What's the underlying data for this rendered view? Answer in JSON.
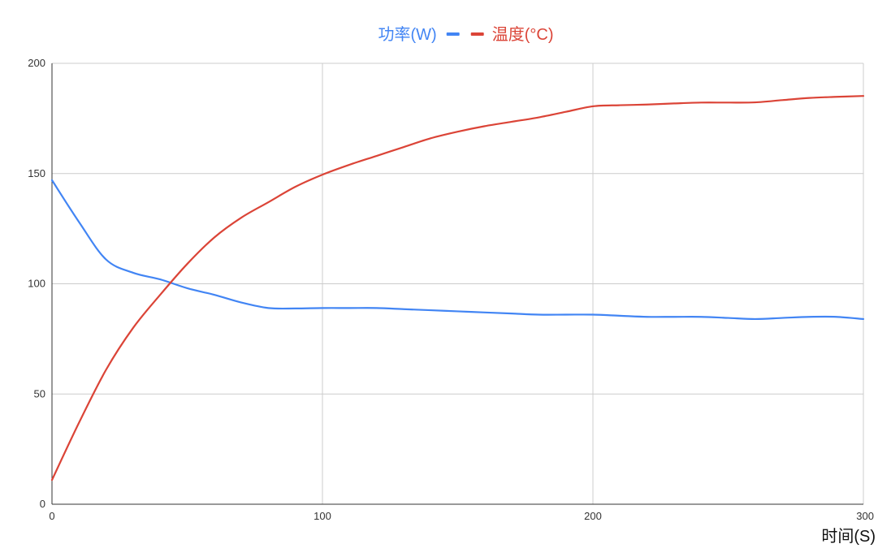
{
  "chart_data": {
    "type": "line",
    "title": "",
    "xlabel": "时间(S)",
    "ylabel": "",
    "xlim": [
      0,
      300
    ],
    "ylim": [
      0,
      200
    ],
    "x_ticks": [
      0,
      100,
      200,
      300
    ],
    "y_ticks": [
      0,
      50,
      100,
      150,
      200
    ],
    "grid": true,
    "legend_position": "top-center",
    "series": [
      {
        "name": "功率(W)",
        "color": "#4285f4",
        "x": [
          0,
          10,
          20,
          30,
          40,
          50,
          60,
          70,
          80,
          90,
          100,
          110,
          120,
          130,
          140,
          150,
          160,
          170,
          180,
          190,
          200,
          210,
          220,
          230,
          240,
          250,
          260,
          270,
          280,
          290,
          300
        ],
        "y": [
          147,
          128,
          111,
          105,
          102,
          98,
          95,
          91.5,
          89,
          88.8,
          89,
          89,
          89,
          88.5,
          88,
          87.5,
          87,
          86.5,
          86,
          86,
          86,
          85.5,
          85,
          85,
          85,
          84.5,
          84,
          84.5,
          85,
          85,
          84
        ]
      },
      {
        "name": "温度(°C)",
        "color": "#db4437",
        "x": [
          0,
          10,
          20,
          30,
          40,
          50,
          60,
          70,
          80,
          90,
          100,
          110,
          120,
          130,
          140,
          150,
          160,
          170,
          180,
          190,
          200,
          210,
          220,
          230,
          240,
          250,
          260,
          270,
          280,
          290,
          300
        ],
        "y": [
          11,
          37,
          61,
          80,
          95,
          109,
          121,
          130,
          137,
          144,
          149.5,
          154,
          158,
          162,
          166,
          169,
          171.5,
          173.5,
          175.5,
          178,
          180.5,
          181,
          181.3,
          181.8,
          182.2,
          182.2,
          182.3,
          183.3,
          184.3,
          184.8,
          185.2
        ]
      }
    ]
  }
}
